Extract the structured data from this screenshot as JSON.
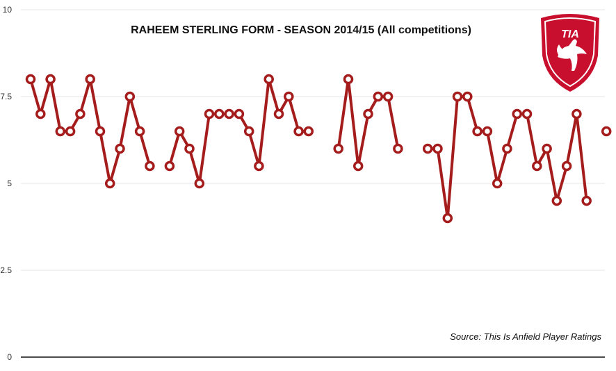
{
  "chart_data": {
    "type": "line",
    "title": "RAHEEM STERLING FORM - SEASON 2014/15 (All competitions)",
    "source": "Source: This Is Anfield Player Ratings",
    "xlabel": "",
    "ylabel": "",
    "ylim": [
      0,
      10
    ],
    "y_ticks": [
      "0",
      "2.5",
      "5",
      "7.5",
      "10"
    ],
    "grid": true,
    "series": [
      {
        "values": [
          8,
          7,
          8,
          6.5,
          6.5,
          7,
          8,
          6.5,
          5,
          6,
          7.5,
          6.5,
          5.5,
          null,
          5.5,
          6.5,
          6,
          5,
          7,
          7,
          7,
          7,
          6.5,
          5.5,
          8,
          7,
          7.5,
          6.5,
          6.5,
          null,
          null,
          6,
          8,
          5.5,
          7,
          7.5,
          7.5,
          6,
          null,
          null,
          6,
          6,
          4,
          7.5,
          7.5,
          6.5,
          6.5,
          5,
          6,
          7,
          7,
          5.5,
          6,
          4.5,
          5.5,
          7,
          4.5,
          null,
          6.5
        ]
      }
    ],
    "colors": {
      "line": "#a51c1c",
      "marker_fill": "#ffffff",
      "axis": "#111111",
      "grid": "#e6e6e6"
    }
  },
  "logo": {
    "text": "TIA",
    "icon": "liverbird-crest-icon",
    "colors": {
      "shield": "#c8102e",
      "inner": "#ffffff"
    }
  }
}
